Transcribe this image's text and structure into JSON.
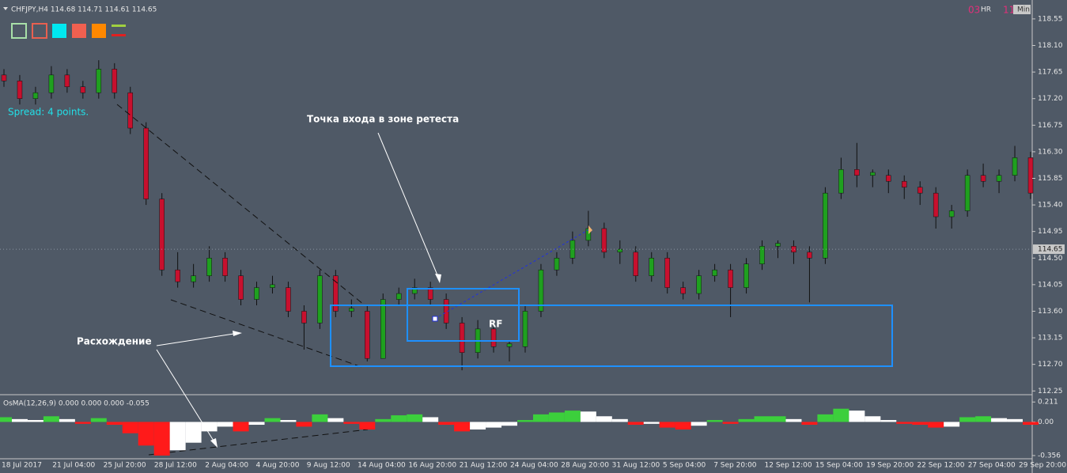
{
  "header": {
    "symbol": "CHFJPY,H4  114.68 114.71 114.61 114.65",
    "spread": "Spread: 4 points.",
    "timer": "03",
    "hr": "HR",
    "mark": "11",
    "button": "Min"
  },
  "annotations": {
    "entry": "Точка входа в зоне ретеста",
    "divergence": "Расхождение",
    "zone": "RF"
  },
  "chart": {
    "type": "candlestick",
    "ylim": [
      112.2,
      118.87
    ],
    "yticks": [
      118.55,
      {
        "value": 118.1,
        "label": "118.10"
      },
      117.65,
      {
        "value": 117.2,
        "label": "117.20"
      },
      116.75,
      {
        "value": 116.3,
        "label": "116.30"
      },
      115.85,
      {
        "value": 115.4,
        "label": "115.40"
      },
      114.95,
      {
        "value": 114.5,
        "label": "114.50"
      },
      114.05,
      {
        "value": 113.6,
        "label": "113.60"
      },
      113.15,
      {
        "value": 112.7,
        "label": "112.70"
      },
      112.25
    ],
    "current_price": 114.65,
    "dates": [
      "18 Jul 2017",
      "21 Jul 04:00",
      "25 Jul 20:00",
      "28 Jul 12:00",
      "2 Aug 04:00",
      "4 Aug 20:00",
      "9 Aug 12:00",
      "14 Aug 04:00",
      "16 Aug 20:00",
      "21 Aug 12:00",
      "24 Aug 04:00",
      "28 Aug 20:00",
      "31 Aug 12:00",
      "5 Sep 04:00",
      "7 Sep 20:00",
      "12 Sep 12:00",
      "15 Sep 04:00",
      "19 Sep 20:00",
      "22 Sep 12:00",
      "27 Sep 04:00",
      "29 Sep 20:00"
    ],
    "candles": [
      [
        117.6,
        117.7,
        117.4,
        117.5
      ],
      [
        117.5,
        117.6,
        117.1,
        117.2
      ],
      [
        117.2,
        117.4,
        117.1,
        117.3
      ],
      [
        117.3,
        117.75,
        117.2,
        117.6
      ],
      [
        117.6,
        117.7,
        117.3,
        117.4
      ],
      [
        117.4,
        117.5,
        117.2,
        117.3
      ],
      [
        117.3,
        117.85,
        117.2,
        117.7
      ],
      [
        117.7,
        117.8,
        117.2,
        117.3
      ],
      [
        117.3,
        117.4,
        116.6,
        116.7
      ],
      [
        116.7,
        116.8,
        115.4,
        115.5
      ],
      [
        115.5,
        115.6,
        114.2,
        114.3
      ],
      [
        114.3,
        114.6,
        114.0,
        114.1
      ],
      [
        114.1,
        114.4,
        114.0,
        114.2
      ],
      [
        114.2,
        114.7,
        114.1,
        114.5
      ],
      [
        114.5,
        114.6,
        114.1,
        114.2
      ],
      [
        114.2,
        114.3,
        113.7,
        113.8
      ],
      [
        113.8,
        114.1,
        113.7,
        114.0
      ],
      [
        114.0,
        114.2,
        113.9,
        114.05
      ],
      [
        114.0,
        114.1,
        113.5,
        113.6
      ],
      [
        113.6,
        113.7,
        112.95,
        113.4
      ],
      [
        113.4,
        114.3,
        113.3,
        114.2
      ],
      [
        114.2,
        114.3,
        113.5,
        113.6
      ],
      [
        113.6,
        113.8,
        113.5,
        113.65
      ],
      [
        113.6,
        113.7,
        112.75,
        112.8
      ],
      [
        112.8,
        113.9,
        112.8,
        113.8
      ],
      [
        113.8,
        114.0,
        113.7,
        113.9
      ],
      [
        113.9,
        114.15,
        113.8,
        114.0
      ],
      [
        114.0,
        114.1,
        113.7,
        113.8
      ],
      [
        113.8,
        113.9,
        113.3,
        113.4
      ],
      [
        113.4,
        113.5,
        112.6,
        112.9
      ],
      [
        112.9,
        113.45,
        112.8,
        113.3
      ],
      [
        113.3,
        113.4,
        112.9,
        113.0
      ],
      [
        113.0,
        113.1,
        112.75,
        113.05
      ],
      [
        113.0,
        113.7,
        112.9,
        113.6
      ],
      [
        113.6,
        114.4,
        113.5,
        114.3
      ],
      [
        114.3,
        114.6,
        114.2,
        114.5
      ],
      [
        114.5,
        114.95,
        114.4,
        114.8
      ],
      [
        114.8,
        115.3,
        114.7,
        115.0
      ],
      [
        115.0,
        115.1,
        114.5,
        114.6
      ],
      [
        114.6,
        114.8,
        114.4,
        114.65
      ],
      [
        114.6,
        114.7,
        114.1,
        114.2
      ],
      [
        114.2,
        114.6,
        114.1,
        114.5
      ],
      [
        114.5,
        114.6,
        113.9,
        114.0
      ],
      [
        114.0,
        114.1,
        113.8,
        113.9
      ],
      [
        113.9,
        114.3,
        113.8,
        114.2
      ],
      [
        114.2,
        114.4,
        114.1,
        114.3
      ],
      [
        114.3,
        114.4,
        113.5,
        114.0
      ],
      [
        114.0,
        114.5,
        113.9,
        114.4
      ],
      [
        114.4,
        114.8,
        114.3,
        114.7
      ],
      [
        114.7,
        114.8,
        114.5,
        114.75
      ],
      [
        114.7,
        114.8,
        114.4,
        114.6
      ],
      [
        114.6,
        114.7,
        113.75,
        114.5
      ],
      [
        114.5,
        115.7,
        114.4,
        115.6
      ],
      [
        115.6,
        116.2,
        115.5,
        116.0
      ],
      [
        116.0,
        116.45,
        115.7,
        115.9
      ],
      [
        115.9,
        116.0,
        115.7,
        115.95
      ],
      [
        115.9,
        116.0,
        115.6,
        115.8
      ],
      [
        115.8,
        115.9,
        115.5,
        115.7
      ],
      [
        115.7,
        115.8,
        115.4,
        115.6
      ],
      [
        115.6,
        115.7,
        115.0,
        115.2
      ],
      [
        115.2,
        115.4,
        115.0,
        115.3
      ],
      [
        115.3,
        116.0,
        115.2,
        115.9
      ],
      [
        115.9,
        116.1,
        115.7,
        115.8
      ],
      [
        115.8,
        116.0,
        115.6,
        115.9
      ],
      [
        115.9,
        116.4,
        115.8,
        116.2
      ],
      [
        116.2,
        116.3,
        115.5,
        115.6
      ]
    ]
  },
  "indicator": {
    "type": "histogram",
    "title": "OsMA(12,26,9) 0.000 0.000 0.000 -0.055",
    "ylim": [
      -0.39,
      0.28
    ],
    "yticks": [
      0.211,
      {
        "value": 0,
        "label": "0.00"
      },
      -0.356
    ],
    "values": [
      0.05,
      0.03,
      0.02,
      0.06,
      0.03,
      -0.02,
      0.04,
      -0.03,
      -0.12,
      -0.25,
      -0.356,
      -0.3,
      -0.22,
      -0.1,
      -0.05,
      -0.1,
      -0.03,
      0.04,
      0.02,
      -0.05,
      0.08,
      0.04,
      -0.02,
      -0.08,
      0.03,
      0.07,
      0.08,
      0.05,
      -0.03,
      -0.1,
      -0.08,
      -0.06,
      -0.04,
      0.02,
      0.08,
      0.1,
      0.12,
      0.11,
      0.06,
      0.03,
      -0.03,
      -0.02,
      -0.06,
      -0.08,
      -0.04,
      0.02,
      -0.02,
      0.03,
      0.06,
      0.06,
      0.03,
      -0.03,
      0.08,
      0.14,
      0.12,
      0.06,
      0.02,
      -0.02,
      -0.03,
      -0.06,
      -0.05,
      0.05,
      0.06,
      0.04,
      0.03,
      -0.03
    ]
  }
}
